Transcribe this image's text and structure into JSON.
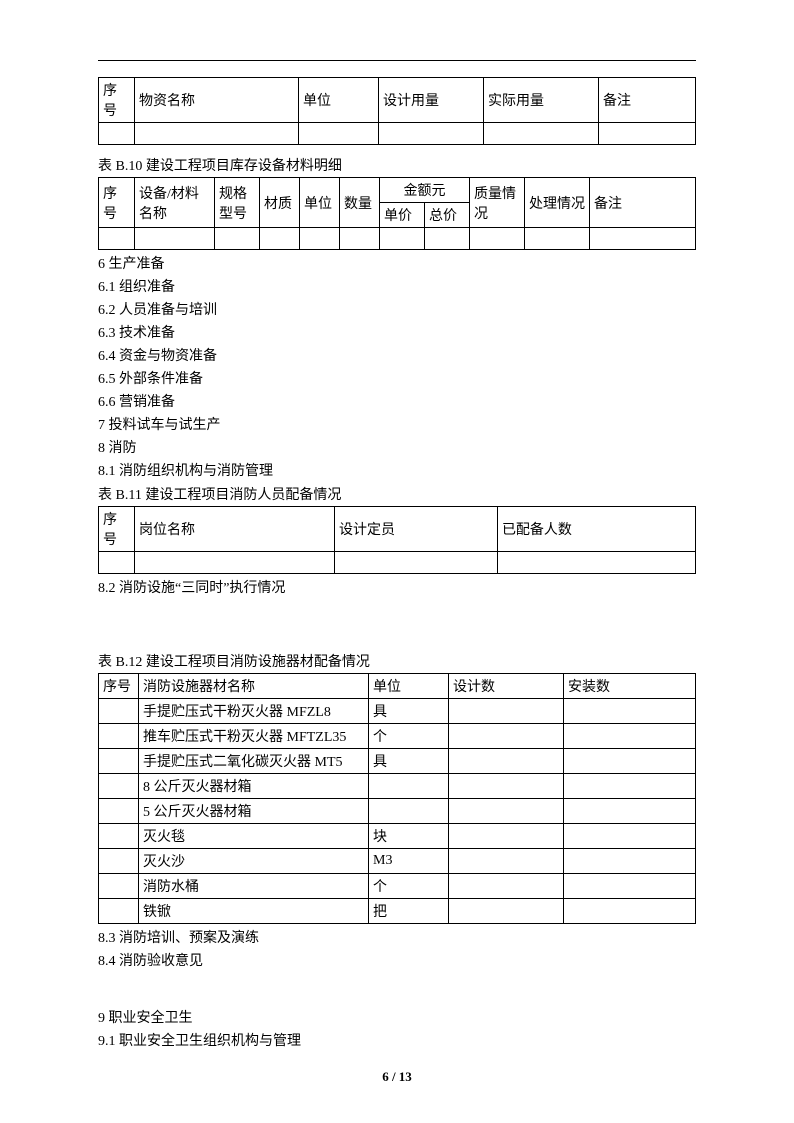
{
  "table1": {
    "headers": [
      "序号",
      "物资名称",
      "单位",
      "设计用量",
      "实际用量",
      "备注"
    ]
  },
  "table2": {
    "caption": "表 B.10 建设工程项目库存设备材料明细",
    "headers_row1": [
      "序号",
      "设备/材料名称",
      "规格型号",
      "材质",
      "单位",
      "数量",
      "金额元",
      "质量情况",
      "处理情况",
      "备注"
    ],
    "headers_row2": [
      "单价",
      "总价"
    ]
  },
  "section6": [
    "6 生产准备",
    "6.1 组织准备",
    "6.2 人员准备与培训",
    "6.3 技术准备",
    "6.4 资金与物资准备",
    "6.5 外部条件准备",
    "6.6 营销准备",
    "7 投料试车与试生产",
    "8 消防",
    "8.1 消防组织机构与消防管理"
  ],
  "table3": {
    "caption": "表 B.11 建设工程项目消防人员配备情况",
    "headers": [
      "序号",
      "岗位名称",
      "设计定员",
      "已配备人数"
    ]
  },
  "line_82": "8.2 消防设施“三同时”执行情况",
  "table4": {
    "caption": "表 B.12 建设工程项目消防设施器材配备情况",
    "headers": [
      "序号",
      "消防设施器材名称",
      "单位",
      "设计数",
      "安装数"
    ],
    "rows": [
      [
        "",
        "手提贮压式干粉灭火器 MFZL8",
        "具",
        "",
        ""
      ],
      [
        "",
        "推车贮压式干粉灭火器 MFTZL35",
        "个",
        "",
        ""
      ],
      [
        "",
        "手提贮压式二氧化碳灭火器 MT5",
        "具",
        "",
        ""
      ],
      [
        "",
        "8 公斤灭火器材箱",
        "",
        "",
        ""
      ],
      [
        "",
        "5 公斤灭火器材箱",
        "",
        "",
        ""
      ],
      [
        "",
        "灭火毯",
        "块",
        "",
        ""
      ],
      [
        "",
        "灭火沙",
        "M3",
        "",
        ""
      ],
      [
        "",
        "消防水桶",
        "个",
        "",
        ""
      ],
      [
        "",
        "铁锨",
        "把",
        "",
        ""
      ]
    ]
  },
  "lines_after_t4": [
    "8.3 消防培训、预案及演练",
    "8.4 消防验收意见"
  ],
  "section9": [
    "9 职业安全卫生",
    "9.1 职业安全卫生组织机构与管理"
  ],
  "footer": "6 / 13"
}
